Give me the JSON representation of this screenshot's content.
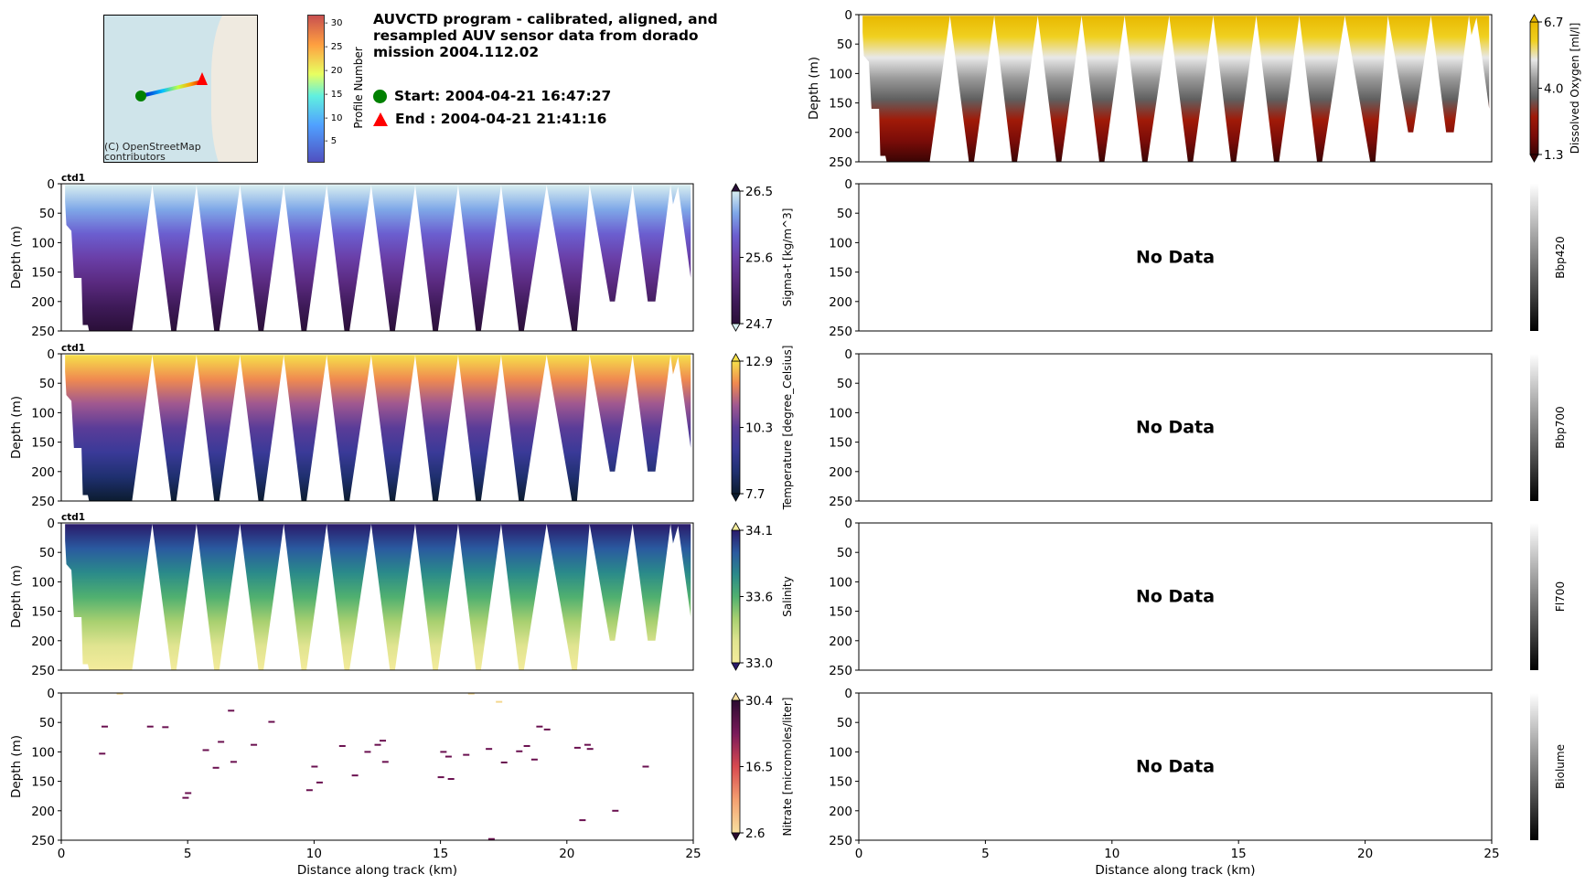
{
  "header": {
    "title": "AUVCTD program - calibrated, aligned, and resampled AUV sensor data from dorado mission 2004.112.02",
    "start_label": "Start: 2004-04-21 16:47:27",
    "end_label": "End  : 2004-04-21 21:41:16",
    "map_credit": "(C) OpenStreetMap contributors",
    "profile_colorbar": {
      "label": "Profile Number",
      "ticks": [
        "5",
        "10",
        "15",
        "20",
        "25",
        "30"
      ],
      "range": [
        1,
        32
      ]
    }
  },
  "colors": {
    "start": "#008000",
    "end": "#ff0000"
  },
  "chart_data": [
    {
      "type": "heatmap",
      "id": "oxygen",
      "title": "",
      "cbar_label": "Dissolved Oxygen [ml/l]",
      "cbar_ticks": [
        "6.7",
        "4.0",
        "1.3"
      ],
      "range": [
        1.3,
        6.7
      ],
      "xlabel": "",
      "ylabel": "Depth (m)",
      "xlim": [
        0,
        25
      ],
      "ylim": [
        250,
        0
      ],
      "yticks": [
        "0",
        "50",
        "100",
        "150",
        "200",
        "250"
      ],
      "xticks": [],
      "no_data": false,
      "colormap": [
        "#e8b800",
        "#f0d020",
        "#e8e8e8",
        "#9a9a9a",
        "#606060",
        "#a01a08",
        "#7a0c08",
        "#3a0404"
      ]
    },
    {
      "type": "heatmap",
      "id": "sigmat",
      "title": "ctd1",
      "cbar_label": "Sigma-t [kg/m^3]",
      "cbar_ticks": [
        "26.5",
        "25.6",
        "24.7"
      ],
      "range": [
        24.7,
        26.5
      ],
      "xlabel": "",
      "ylabel": "Depth (m)",
      "xlim": [
        0,
        25
      ],
      "ylim": [
        250,
        0
      ],
      "yticks": [
        "0",
        "50",
        "100",
        "150",
        "200",
        "250"
      ],
      "xticks": [],
      "no_data": false,
      "colormap": [
        "#d8eef0",
        "#7fa8e8",
        "#6b5fd0",
        "#6a3fa8",
        "#5a2a80",
        "#3e1a58",
        "#2a0f38"
      ]
    },
    {
      "type": "heatmap",
      "id": "temperature",
      "title": "ctd1",
      "cbar_label": "Temperature [degree_Celsius]",
      "cbar_ticks": [
        "12.9",
        "10.3",
        "7.7"
      ],
      "range": [
        7.7,
        12.9
      ],
      "xlabel": "",
      "ylabel": "Depth (m)",
      "xlim": [
        0,
        25
      ],
      "ylim": [
        250,
        0
      ],
      "yticks": [
        "0",
        "50",
        "100",
        "150",
        "200",
        "250"
      ],
      "xticks": [],
      "no_data": false,
      "colormap": [
        "#f6e04a",
        "#f08a50",
        "#a05890",
        "#5a3c98",
        "#3a3a98",
        "#1f3070",
        "#0c1c30"
      ]
    },
    {
      "type": "heatmap",
      "id": "salinity",
      "title": "ctd1",
      "cbar_label": "Salinity",
      "cbar_ticks": [
        "34.1",
        "33.6",
        "33.0"
      ],
      "range": [
        33.0,
        34.1
      ],
      "xlabel": "",
      "ylabel": "Depth (m)",
      "xlim": [
        0,
        25
      ],
      "ylim": [
        250,
        0
      ],
      "yticks": [
        "0",
        "50",
        "100",
        "150",
        "200",
        "250"
      ],
      "xticks": [],
      "no_data": false,
      "colormap": [
        "#2a1a6a",
        "#2a5aa0",
        "#2a8a8a",
        "#50b070",
        "#a8d070",
        "#e0e490",
        "#f4ec9c"
      ]
    },
    {
      "type": "scatter",
      "id": "nitrate",
      "title": "",
      "cbar_label": "Nitrate [micromoles/liter]",
      "cbar_ticks": [
        "30.4",
        "16.5",
        "2.6"
      ],
      "range": [
        2.6,
        30.4
      ],
      "xlabel": "Distance along track (km)",
      "ylabel": "Depth (m)",
      "xlim": [
        0,
        25
      ],
      "ylim": [
        250,
        0
      ],
      "yticks": [
        "0",
        "50",
        "100",
        "150",
        "200",
        "250"
      ],
      "xticks": [
        "0",
        "5",
        "10",
        "15",
        "20",
        "25"
      ],
      "no_data": false,
      "colormap": [
        "#2a0a30",
        "#7a1a5a",
        "#d84a50",
        "#f4a070",
        "#f8e0a0"
      ],
      "points": [
        [
          1.7,
          57
        ],
        [
          1.6,
          103
        ],
        [
          3.5,
          57
        ],
        [
          4.1,
          58
        ],
        [
          4.9,
          178
        ],
        [
          5.0,
          170
        ],
        [
          5.7,
          97
        ],
        [
          6.1,
          127
        ],
        [
          6.3,
          83
        ],
        [
          6.7,
          30
        ],
        [
          6.8,
          117
        ],
        [
          7.6,
          88
        ],
        [
          8.3,
          49
        ],
        [
          9.8,
          165
        ],
        [
          10.0,
          125
        ],
        [
          10.2,
          152
        ],
        [
          11.1,
          90
        ],
        [
          11.6,
          140
        ],
        [
          12.1,
          100
        ],
        [
          12.5,
          88
        ],
        [
          12.7,
          81
        ],
        [
          12.8,
          117
        ],
        [
          15.0,
          143
        ],
        [
          15.1,
          100
        ],
        [
          15.3,
          108
        ],
        [
          15.4,
          146
        ],
        [
          16.0,
          105
        ],
        [
          16.9,
          95
        ],
        [
          17.0,
          248
        ],
        [
          17.3,
          15
        ],
        [
          17.5,
          118
        ],
        [
          18.1,
          99
        ],
        [
          18.4,
          90
        ],
        [
          18.7,
          113
        ],
        [
          18.9,
          57
        ],
        [
          19.2,
          62
        ],
        [
          20.4,
          93
        ],
        [
          20.6,
          216
        ],
        [
          20.8,
          88
        ],
        [
          20.9,
          95
        ],
        [
          21.9,
          200
        ],
        [
          23.1,
          125
        ],
        [
          2.3,
          1
        ],
        [
          16.2,
          1
        ]
      ]
    },
    {
      "type": "heatmap",
      "id": "bbp420",
      "cbar_label": "Bbp420",
      "cbar_ticks": [],
      "xlabel": "",
      "ylabel": "",
      "xlim": [
        0,
        25
      ],
      "ylim": [
        250,
        0
      ],
      "yticks": [
        "0",
        "50",
        "100",
        "150",
        "200",
        "250"
      ],
      "xticks": [],
      "no_data": true,
      "no_data_text": "No Data"
    },
    {
      "type": "heatmap",
      "id": "bbp700",
      "cbar_label": "Bbp700",
      "cbar_ticks": [],
      "xlabel": "",
      "ylabel": "",
      "xlim": [
        0,
        25
      ],
      "ylim": [
        250,
        0
      ],
      "yticks": [
        "0",
        "50",
        "100",
        "150",
        "200",
        "250"
      ],
      "xticks": [],
      "no_data": true,
      "no_data_text": "No Data"
    },
    {
      "type": "heatmap",
      "id": "fl700",
      "cbar_label": "Fl700",
      "cbar_ticks": [],
      "xlabel": "",
      "ylabel": "",
      "xlim": [
        0,
        25
      ],
      "ylim": [
        250,
        0
      ],
      "yticks": [
        "0",
        "50",
        "100",
        "150",
        "200",
        "250"
      ],
      "xticks": [],
      "no_data": true,
      "no_data_text": "No Data"
    },
    {
      "type": "heatmap",
      "id": "biolume",
      "cbar_label": "Biolume",
      "cbar_ticks": [],
      "xlabel": "Distance along track (km)",
      "ylabel": "",
      "xlim": [
        0,
        25
      ],
      "ylim": [
        250,
        0
      ],
      "yticks": [
        "0",
        "50",
        "100",
        "150",
        "200",
        "250"
      ],
      "xticks": [
        "0",
        "5",
        "10",
        "15",
        "20",
        "25"
      ],
      "no_data": true,
      "no_data_text": "No Data"
    }
  ],
  "track_envelope": [
    [
      0.15,
      30
    ],
    [
      0.2,
      70
    ],
    [
      0.4,
      80
    ],
    [
      0.5,
      160
    ],
    [
      0.8,
      160
    ],
    [
      0.85,
      240
    ],
    [
      1.05,
      240
    ],
    [
      1.1,
      250
    ],
    [
      1.2,
      250
    ],
    [
      2.6,
      250
    ],
    [
      2.8,
      250
    ],
    [
      3.6,
      2
    ],
    [
      4.35,
      250
    ],
    [
      4.55,
      250
    ],
    [
      5.35,
      2
    ],
    [
      6.05,
      250
    ],
    [
      6.25,
      250
    ],
    [
      7.07,
      2
    ],
    [
      7.8,
      250
    ],
    [
      8.0,
      250
    ],
    [
      8.8,
      2
    ],
    [
      9.5,
      250
    ],
    [
      9.7,
      250
    ],
    [
      10.5,
      2
    ],
    [
      11.2,
      250
    ],
    [
      11.4,
      250
    ],
    [
      12.26,
      2
    ],
    [
      13.0,
      250
    ],
    [
      13.2,
      250
    ],
    [
      14.0,
      2
    ],
    [
      14.7,
      250
    ],
    [
      14.9,
      250
    ],
    [
      15.7,
      2
    ],
    [
      16.4,
      250
    ],
    [
      16.6,
      250
    ],
    [
      17.4,
      2
    ],
    [
      18.1,
      250
    ],
    [
      18.3,
      250
    ],
    [
      19.2,
      2
    ],
    [
      20.2,
      250
    ],
    [
      20.4,
      250
    ],
    [
      20.9,
      2
    ],
    [
      21.7,
      200
    ],
    [
      21.9,
      200
    ],
    [
      22.6,
      2
    ],
    [
      23.2,
      200
    ],
    [
      23.5,
      200
    ],
    [
      24.1,
      2
    ],
    [
      24.2,
      35
    ],
    [
      24.4,
      5
    ],
    [
      24.9,
      160
    ],
    [
      24.9,
      2
    ]
  ]
}
